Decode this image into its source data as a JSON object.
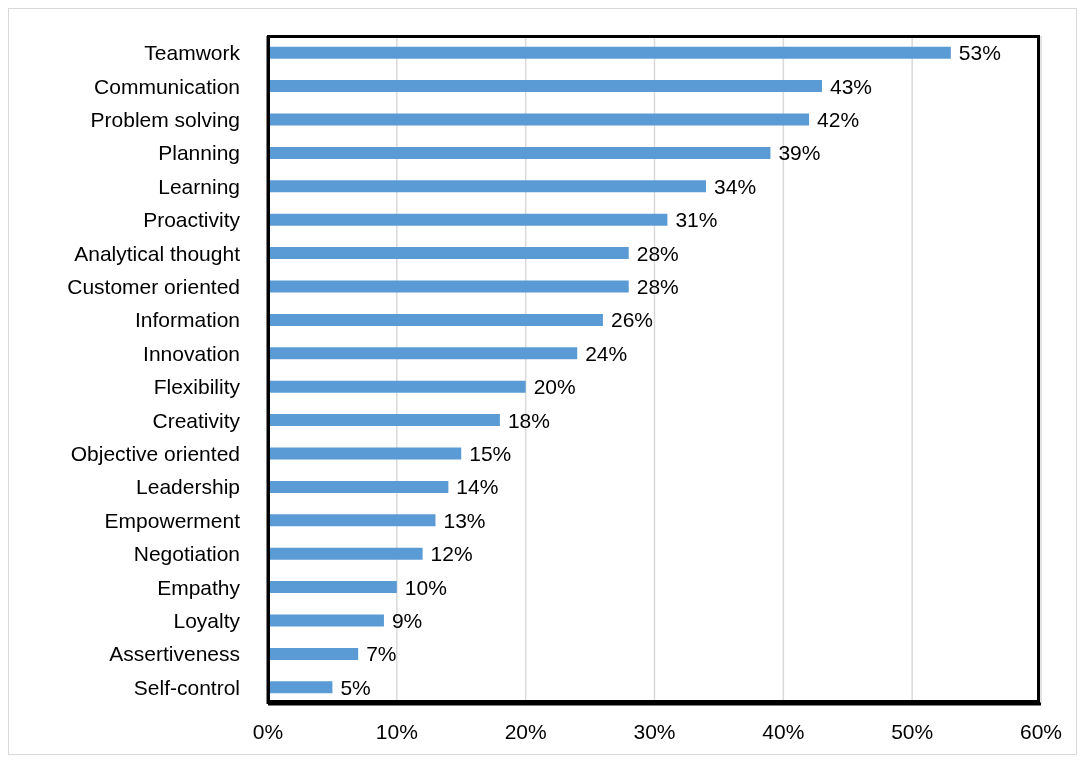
{
  "chart_data": {
    "type": "bar",
    "orientation": "horizontal",
    "categories": [
      "Teamwork",
      "Communication",
      "Problem solving",
      "Planning",
      "Learning",
      "Proactivity",
      "Analytical thought",
      "Customer oriented",
      "Information",
      "Innovation",
      "Flexibility",
      "Creativity",
      "Objective oriented",
      "Leadership",
      "Empowerment",
      "Negotiation",
      "Empathy",
      "Loyalty",
      "Assertiveness",
      "Self-control"
    ],
    "values": [
      53,
      43,
      42,
      39,
      34,
      31,
      28,
      28,
      26,
      24,
      20,
      18,
      15,
      14,
      13,
      12,
      10,
      9,
      7,
      5
    ],
    "value_labels": [
      "53%",
      "43%",
      "42%",
      "39%",
      "34%",
      "31%",
      "28%",
      "28%",
      "26%",
      "24%",
      "20%",
      "18%",
      "15%",
      "14%",
      "13%",
      "12%",
      "10%",
      "9%",
      "7%",
      "5%"
    ],
    "color": "#5b9bd5",
    "xlim": [
      0,
      60
    ],
    "xticks": [
      {
        "value": 0,
        "label": "0%"
      },
      {
        "value": 10,
        "label": "10%"
      },
      {
        "value": 20,
        "label": "20%"
      },
      {
        "value": 30,
        "label": "30%"
      },
      {
        "value": 40,
        "label": "40%"
      },
      {
        "value": 50,
        "label": "50%"
      },
      {
        "value": 60,
        "label": "60%"
      }
    ],
    "grid": "x"
  }
}
